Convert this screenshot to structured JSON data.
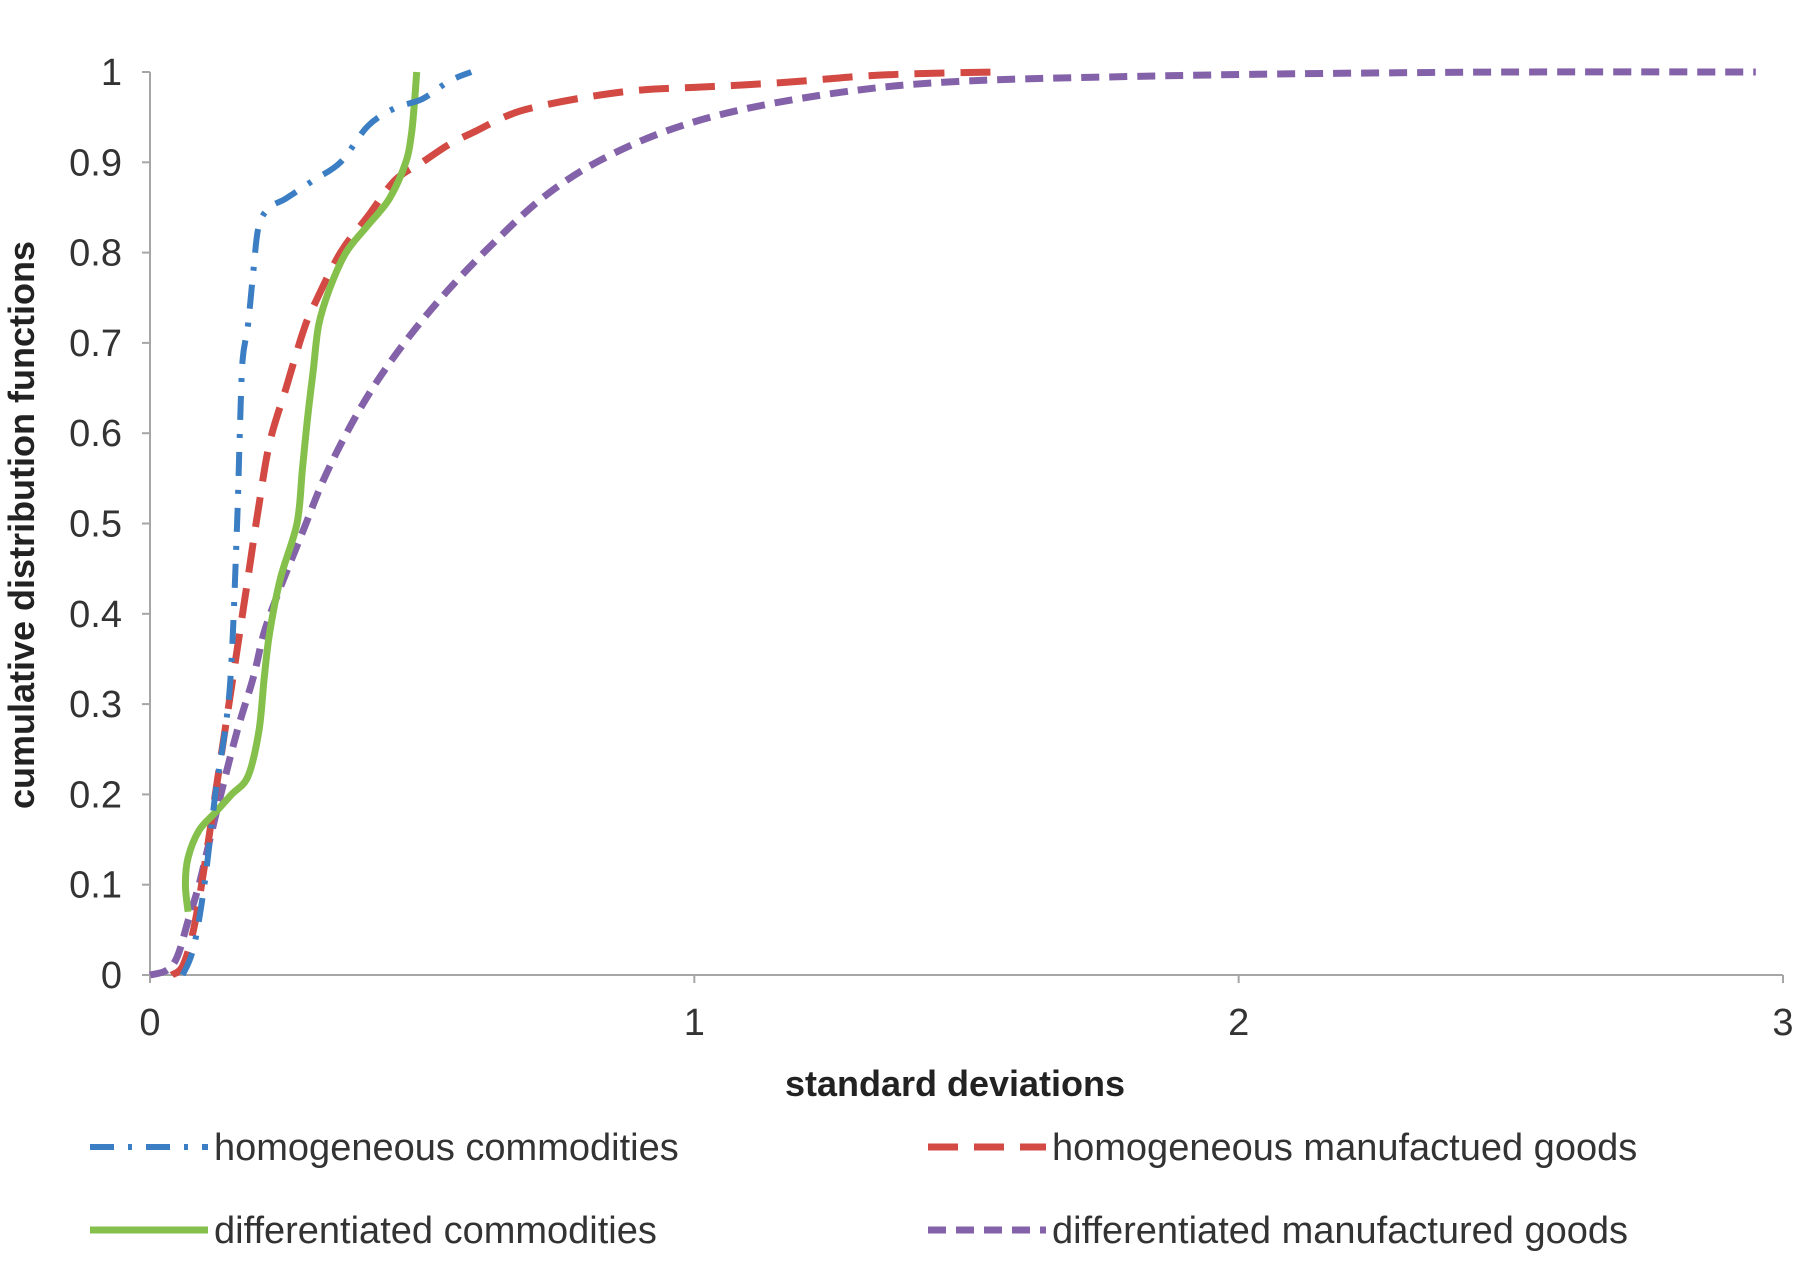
{
  "chart_data": {
    "type": "line",
    "xlabel": "standard deviations",
    "ylabel": "cumulative distribution functions",
    "xlim": [
      0,
      3
    ],
    "ylim": [
      0,
      1
    ],
    "xticks": [
      0,
      1,
      2,
      3
    ],
    "yticks": [
      0,
      0.1,
      0.2,
      0.3,
      0.4,
      0.5,
      0.6,
      0.7,
      0.8,
      0.9,
      1
    ],
    "xtick_labels": [
      "0",
      "1",
      "2",
      "3"
    ],
    "ytick_labels": [
      "0",
      "0.1",
      "0.2",
      "0.3",
      "0.4",
      "0.5",
      "0.6",
      "0.7",
      "0.8",
      "0.9",
      "1"
    ],
    "grid": false,
    "legend_position": "bottom",
    "series": [
      {
        "name": "homogeneous commodities",
        "color": "#3B7EC3",
        "style": "dash-dot",
        "points": [
          [
            0.06,
            0
          ],
          [
            0.08,
            0.03
          ],
          [
            0.1,
            0.1
          ],
          [
            0.12,
            0.2
          ],
          [
            0.14,
            0.28
          ],
          [
            0.15,
            0.35
          ],
          [
            0.16,
            0.5
          ],
          [
            0.165,
            0.6
          ],
          [
            0.17,
            0.68
          ],
          [
            0.18,
            0.72
          ],
          [
            0.19,
            0.78
          ],
          [
            0.2,
            0.83
          ],
          [
            0.22,
            0.85
          ],
          [
            0.25,
            0.86
          ],
          [
            0.3,
            0.88
          ],
          [
            0.35,
            0.9
          ],
          [
            0.4,
            0.94
          ],
          [
            0.45,
            0.96
          ],
          [
            0.5,
            0.97
          ],
          [
            0.55,
            0.99
          ],
          [
            0.59,
            1
          ]
        ]
      },
      {
        "name": "homogeneous manufactued goods",
        "color": "#D24A43",
        "style": "dash",
        "points": [
          [
            0.04,
            0
          ],
          [
            0.06,
            0.01
          ],
          [
            0.08,
            0.05
          ],
          [
            0.1,
            0.12
          ],
          [
            0.12,
            0.2
          ],
          [
            0.14,
            0.28
          ],
          [
            0.16,
            0.36
          ],
          [
            0.18,
            0.44
          ],
          [
            0.2,
            0.52
          ],
          [
            0.22,
            0.59
          ],
          [
            0.25,
            0.65
          ],
          [
            0.28,
            0.71
          ],
          [
            0.3,
            0.74
          ],
          [
            0.35,
            0.8
          ],
          [
            0.4,
            0.84
          ],
          [
            0.45,
            0.88
          ],
          [
            0.5,
            0.9
          ],
          [
            0.55,
            0.92
          ],
          [
            0.6,
            0.935
          ],
          [
            0.65,
            0.95
          ],
          [
            0.7,
            0.96
          ],
          [
            0.8,
            0.972
          ],
          [
            0.9,
            0.98
          ],
          [
            1,
            0.983
          ],
          [
            1.1,
            0.986
          ],
          [
            1.2,
            0.99
          ],
          [
            1.3,
            0.995
          ],
          [
            1.4,
            0.998
          ],
          [
            1.55,
            1
          ]
        ]
      },
      {
        "name": "differentiated commodities",
        "color": "#86C04C",
        "style": "solid",
        "points": [
          [
            0.07,
            0.07
          ],
          [
            0.065,
            0.1
          ],
          [
            0.07,
            0.13
          ],
          [
            0.09,
            0.16
          ],
          [
            0.12,
            0.18
          ],
          [
            0.15,
            0.2
          ],
          [
            0.18,
            0.22
          ],
          [
            0.2,
            0.27
          ],
          [
            0.21,
            0.33
          ],
          [
            0.22,
            0.38
          ],
          [
            0.24,
            0.44
          ],
          [
            0.27,
            0.5
          ],
          [
            0.28,
            0.56
          ],
          [
            0.29,
            0.62
          ],
          [
            0.3,
            0.67
          ],
          [
            0.31,
            0.72
          ],
          [
            0.33,
            0.76
          ],
          [
            0.36,
            0.8
          ],
          [
            0.4,
            0.83
          ],
          [
            0.44,
            0.86
          ],
          [
            0.47,
            0.9
          ],
          [
            0.48,
            0.93
          ],
          [
            0.485,
            0.96
          ],
          [
            0.49,
            1
          ]
        ]
      },
      {
        "name": "differentiated manufactured goods",
        "color": "#8462A9",
        "style": "short-dash",
        "points": [
          [
            0,
            0
          ],
          [
            0.03,
            0.005
          ],
          [
            0.05,
            0.02
          ],
          [
            0.07,
            0.06
          ],
          [
            0.09,
            0.1
          ],
          [
            0.11,
            0.15
          ],
          [
            0.13,
            0.2
          ],
          [
            0.16,
            0.27
          ],
          [
            0.19,
            0.33
          ],
          [
            0.21,
            0.38
          ],
          [
            0.24,
            0.43
          ],
          [
            0.28,
            0.49
          ],
          [
            0.32,
            0.55
          ],
          [
            0.37,
            0.61
          ],
          [
            0.42,
            0.66
          ],
          [
            0.48,
            0.71
          ],
          [
            0.55,
            0.76
          ],
          [
            0.63,
            0.81
          ],
          [
            0.72,
            0.86
          ],
          [
            0.82,
            0.9
          ],
          [
            0.95,
            0.935
          ],
          [
            1.1,
            0.96
          ],
          [
            1.3,
            0.98
          ],
          [
            1.5,
            0.99
          ],
          [
            1.8,
            0.995
          ],
          [
            2.1,
            0.998
          ],
          [
            2.5,
            1
          ],
          [
            2.95,
            1
          ]
        ]
      }
    ]
  }
}
